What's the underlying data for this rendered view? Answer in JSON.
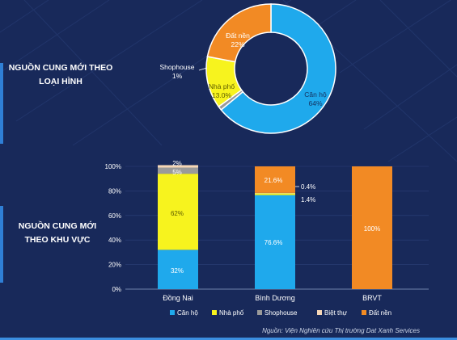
{
  "labels": {
    "type_title": [
      "NGUỒN CUNG MỚI THEO",
      "LOẠI HÌNH"
    ],
    "region_title": [
      "NGUỒN CUNG MỚI",
      "THEO KHU VỰC"
    ]
  },
  "source": "Nguồn: Viện Nghiên cứu Thị trường Dat Xanh Services",
  "colors": {
    "background": "#18295a",
    "can_ho": "#1fa9ec",
    "nha_pho": "#f7f31e",
    "shophouse": "#9a9a9a",
    "biet_thu": "#f6d7b7",
    "dat_nen": "#f28a24"
  },
  "chart_data": [
    {
      "type": "pie",
      "donut": true,
      "slices": [
        {
          "name": "Căn hộ",
          "value": 64,
          "label": "64%",
          "color": "#1fa9ec"
        },
        {
          "name": "Shophouse",
          "value": 1,
          "label": "1%",
          "color": "#9a9a9a"
        },
        {
          "name": "Nhà phố",
          "value": 13.0,
          "label": "13.0%",
          "color": "#f7f31e"
        },
        {
          "name": "Đất nền",
          "value": 22,
          "label": "22%",
          "color": "#f28a24"
        }
      ]
    },
    {
      "type": "bar",
      "stacked": true,
      "categories": [
        "Đồng Nai",
        "Bình Dương",
        "BRVT"
      ],
      "ylim": [
        0,
        100
      ],
      "yticks": [
        "0%",
        "20%",
        "40%",
        "60%",
        "80%",
        "100%"
      ],
      "series": [
        {
          "name": "Căn hộ",
          "color": "#1fa9ec",
          "values": [
            32,
            76.6,
            0
          ],
          "labels": [
            "32%",
            "76.6%",
            ""
          ]
        },
        {
          "name": "Nhà phố",
          "color": "#f7f31e",
          "values": [
            62,
            1.4,
            0
          ],
          "labels": [
            "62%",
            "1.4%",
            ""
          ]
        },
        {
          "name": "Shophouse",
          "color": "#9a9a9a",
          "values": [
            5,
            0,
            0
          ],
          "labels": [
            "5%",
            "",
            ""
          ]
        },
        {
          "name": "Biệt thự",
          "color": "#f6d7b7",
          "values": [
            2,
            0.4,
            0
          ],
          "labels": [
            "2%",
            "0.4%",
            ""
          ]
        },
        {
          "name": "Đất nền",
          "color": "#f28a24",
          "values": [
            0,
            21.6,
            100
          ],
          "labels": [
            "",
            "21.6%",
            "100%"
          ]
        }
      ],
      "legend_position": "bottom"
    }
  ]
}
